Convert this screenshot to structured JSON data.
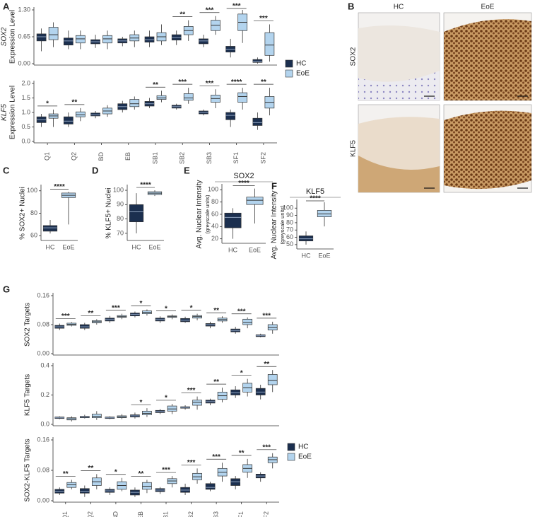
{
  "images": {
    "panel": "B",
    "columns": [
      "HC",
      "EoE"
    ],
    "rows": [
      "SOX2",
      "KLF5"
    ]
  },
  "chart_data": [
    {
      "type": "box",
      "panel": "A",
      "ylabel": [
        "SOX2",
        "Expression Level"
      ],
      "ylabel_italic": true,
      "legend": "lower right",
      "ylim": [
        0,
        1.3
      ],
      "yticks": [
        {
          "value": 0,
          "label": "0.00"
        },
        {
          "value": 0.65,
          "label": "0.65"
        },
        {
          "value": 1.3,
          "label": "1.30"
        }
      ],
      "annotations": [
        null,
        null,
        null,
        null,
        null,
        "**",
        "***",
        "***",
        "***"
      ],
      "series": [
        {
          "name": "HC",
          "color": "#1b2f4f",
          "boxes": [
            [
              0.3,
              0.55,
              0.65,
              0.72,
              0.85
            ],
            [
              0.35,
              0.45,
              0.55,
              0.62,
              0.8
            ],
            [
              0.38,
              0.48,
              0.53,
              0.58,
              0.7
            ],
            [
              0.42,
              0.5,
              0.55,
              0.6,
              0.65
            ],
            [
              0.4,
              0.52,
              0.58,
              0.65,
              0.8
            ],
            [
              0.45,
              0.57,
              0.63,
              0.7,
              0.8
            ],
            [
              0.4,
              0.48,
              0.55,
              0.6,
              0.7
            ],
            [
              0.15,
              0.28,
              0.35,
              0.42,
              0.6
            ],
            [
              0.0,
              0.03,
              0.06,
              0.1,
              0.15
            ]
          ]
        },
        {
          "name": "EoE",
          "color": "#b3d4ee",
          "boxes": [
            [
              0.4,
              0.58,
              0.7,
              0.88,
              1.0
            ],
            [
              0.35,
              0.5,
              0.6,
              0.68,
              0.8
            ],
            [
              0.35,
              0.5,
              0.6,
              0.68,
              0.8
            ],
            [
              0.4,
              0.55,
              0.62,
              0.7,
              0.8
            ],
            [
              0.45,
              0.55,
              0.65,
              0.75,
              0.95
            ],
            [
              0.55,
              0.7,
              0.8,
              0.9,
              1.05
            ],
            [
              0.7,
              0.8,
              0.93,
              1.05,
              1.15
            ],
            [
              0.5,
              0.8,
              1.0,
              1.2,
              1.3
            ],
            [
              0.05,
              0.2,
              0.45,
              0.75,
              0.95
            ]
          ]
        }
      ]
    },
    {
      "type": "box",
      "ylabel": [
        "KLF5",
        "Expression Level"
      ],
      "ylabel_italic": true,
      "categories": [
        "Q1",
        "Q2",
        "BD",
        "EB",
        "SB1",
        "SB2",
        "SB3",
        "SF1",
        "SF2"
      ],
      "ylim": [
        0,
        2
      ],
      "yticks": [
        {
          "value": 0,
          "label": "0.0"
        },
        {
          "value": 0.5,
          "label": "0.5"
        },
        {
          "value": 1,
          "label": "1.0"
        },
        {
          "value": 1.5,
          "label": "1.5"
        },
        {
          "value": 2,
          "label": "2.0"
        }
      ],
      "annotations": [
        "*",
        "**",
        null,
        null,
        "**",
        "***",
        "***",
        "****",
        "**"
      ],
      "series": [
        {
          "name": "HC",
          "color": "#1b2f4f",
          "boxes": [
            [
              0.5,
              0.65,
              0.75,
              0.85,
              0.95
            ],
            [
              0.5,
              0.6,
              0.7,
              0.85,
              1.0
            ],
            [
              0.8,
              0.88,
              0.92,
              0.98,
              1.05
            ],
            [
              1.0,
              1.1,
              1.2,
              1.3,
              1.4
            ],
            [
              1.15,
              1.22,
              1.3,
              1.38,
              1.5
            ],
            [
              1.1,
              1.15,
              1.2,
              1.25,
              1.3
            ],
            [
              0.9,
              0.95,
              1.0,
              1.05,
              1.1
            ],
            [
              0.5,
              0.75,
              0.9,
              1.0,
              1.1
            ],
            [
              0.4,
              0.55,
              0.65,
              0.8,
              1.0
            ]
          ]
        },
        {
          "name": "EoE",
          "color": "#b3d4ee",
          "boxes": [
            [
              0.5,
              0.8,
              0.88,
              0.95,
              1.1
            ],
            [
              0.7,
              0.85,
              0.92,
              1.02,
              1.15
            ],
            [
              0.85,
              0.95,
              1.05,
              1.15,
              1.25
            ],
            [
              1.1,
              1.2,
              1.3,
              1.45,
              1.55
            ],
            [
              1.35,
              1.45,
              1.5,
              1.58,
              1.75
            ],
            [
              1.3,
              1.42,
              1.5,
              1.65,
              1.85
            ],
            [
              1.15,
              1.35,
              1.48,
              1.6,
              1.8
            ],
            [
              1.1,
              1.35,
              1.55,
              1.68,
              1.85
            ],
            [
              0.9,
              1.15,
              1.35,
              1.55,
              1.85
            ]
          ]
        }
      ]
    },
    {
      "type": "pair",
      "panel": "C",
      "ylabel": [
        "% SOX2+ Nuclei"
      ],
      "categories": [
        "HC",
        "EoE"
      ],
      "ylim": [
        57,
        103
      ],
      "yticks": [
        60,
        80,
        100
      ],
      "annotations": [
        "****"
      ],
      "colors": [
        "#1b2f4f",
        "#b3d4ee"
      ],
      "boxes": [
        [
          62,
          64,
          67,
          69,
          74
        ],
        [
          70,
          94,
          96,
          98,
          99
        ]
      ]
    },
    {
      "type": "pair",
      "panel": "D",
      "ylabel": [
        "% KLF5+ Nuclei"
      ],
      "categories": [
        "HC",
        "EoE"
      ],
      "ylim": [
        66,
        102
      ],
      "yticks": [
        70,
        80,
        90,
        100
      ],
      "annotations": [
        "****"
      ],
      "colors": [
        "#1b2f4f",
        "#b3d4ee"
      ],
      "boxes": [
        [
          70,
          78,
          85,
          90,
          98
        ],
        [
          96,
          97,
          98,
          99,
          100
        ]
      ]
    },
    {
      "type": "pair",
      "panel": "E",
      "title": "SOX2",
      "ylabel": [
        "Avg. Nuclear Intensity",
        "(greyscale units)"
      ],
      "categories": [
        "HC",
        "EoE"
      ],
      "ylim": [
        15,
        105
      ],
      "yticks": [
        20,
        40,
        60,
        80,
        100
      ],
      "annotations": [
        "****"
      ],
      "colors": [
        "#1b2f4f",
        "#b3d4ee"
      ],
      "boxes": [
        [
          20,
          38,
          55,
          62,
          70
        ],
        [
          45,
          76,
          83,
          88,
          102
        ]
      ]
    },
    {
      "type": "pair",
      "panel": "F",
      "title": "KLF5",
      "ylabel": [
        "Avg. Nuclear Intensity",
        "(greyscale units)"
      ],
      "categories": [
        "HC",
        "EoE"
      ],
      "ylim": [
        46,
        108
      ],
      "yticks": [
        50,
        60,
        70,
        80,
        90,
        100
      ],
      "annotations": [
        "****"
      ],
      "colors": [
        "#1b2f4f",
        "#b3d4ee"
      ],
      "boxes": [
        [
          50,
          55,
          58,
          62,
          68
        ],
        [
          75,
          88,
          92,
          97,
          108
        ]
      ]
    },
    {
      "type": "box",
      "panel": "G",
      "ylabel": [
        "SOX2 Targets"
      ],
      "ylim": [
        0,
        0.16
      ],
      "yticks": [
        {
          "value": 0,
          "label": "0.00"
        },
        {
          "value": 0.08,
          "label": "0.08"
        },
        {
          "value": 0.16,
          "label": "0.16"
        }
      ],
      "annotations": [
        "***",
        "**",
        "***",
        "*",
        "*",
        "*",
        "**",
        "***",
        "***"
      ],
      "series": [
        {
          "name": "HC",
          "color": "#1b2f4f",
          "boxes": [
            [
              0.065,
              0.07,
              0.074,
              0.078,
              0.083
            ],
            [
              0.065,
              0.07,
              0.074,
              0.08,
              0.085
            ],
            [
              0.085,
              0.09,
              0.094,
              0.098,
              0.104
            ],
            [
              0.1,
              0.104,
              0.108,
              0.112,
              0.116
            ],
            [
              0.085,
              0.09,
              0.094,
              0.098,
              0.103
            ],
            [
              0.085,
              0.088,
              0.092,
              0.097,
              0.102
            ],
            [
              0.07,
              0.076,
              0.08,
              0.083,
              0.088
            ],
            [
              0.055,
              0.06,
              0.064,
              0.068,
              0.074
            ],
            [
              0.045,
              0.047,
              0.05,
              0.052,
              0.055
            ]
          ]
        },
        {
          "name": "EoE",
          "color": "#b3d4ee",
          "boxes": [
            [
              0.075,
              0.078,
              0.081,
              0.084,
              0.087
            ],
            [
              0.08,
              0.085,
              0.088,
              0.091,
              0.095
            ],
            [
              0.095,
              0.1,
              0.102,
              0.105,
              0.11
            ],
            [
              0.105,
              0.11,
              0.114,
              0.118,
              0.122
            ],
            [
              0.095,
              0.1,
              0.102,
              0.104,
              0.108
            ],
            [
              0.092,
              0.098,
              0.102,
              0.105,
              0.11
            ],
            [
              0.085,
              0.09,
              0.094,
              0.098,
              0.103
            ],
            [
              0.07,
              0.08,
              0.086,
              0.095,
              0.1
            ],
            [
              0.055,
              0.065,
              0.072,
              0.08,
              0.088
            ]
          ]
        }
      ]
    },
    {
      "type": "box",
      "ylabel": [
        "KLF5 Targets"
      ],
      "ylim": [
        0,
        0.4
      ],
      "yticks": [
        {
          "value": 0,
          "label": "0.0"
        },
        {
          "value": 0.2,
          "label": "0.2"
        },
        {
          "value": 0.4,
          "label": "0.4"
        }
      ],
      "annotations": [
        null,
        null,
        null,
        "*",
        "*",
        "***",
        "**",
        "*",
        "**"
      ],
      "series": [
        {
          "name": "HC",
          "color": "#1b2f4f",
          "boxes": [
            [
              0.035,
              0.04,
              0.045,
              0.05,
              0.055
            ],
            [
              0.04,
              0.045,
              0.05,
              0.055,
              0.065
            ],
            [
              0.035,
              0.04,
              0.045,
              0.05,
              0.055
            ],
            [
              0.04,
              0.05,
              0.058,
              0.065,
              0.08
            ],
            [
              0.07,
              0.08,
              0.088,
              0.095,
              0.105
            ],
            [
              0.1,
              0.11,
              0.115,
              0.12,
              0.13
            ],
            [
              0.13,
              0.145,
              0.155,
              0.165,
              0.175
            ],
            [
              0.18,
              0.2,
              0.215,
              0.235,
              0.26
            ],
            [
              0.17,
              0.2,
              0.22,
              0.245,
              0.27
            ]
          ]
        },
        {
          "name": "EoE",
          "color": "#b3d4ee",
          "boxes": [
            [
              0.02,
              0.03,
              0.038,
              0.045,
              0.055
            ],
            [
              0.03,
              0.045,
              0.055,
              0.07,
              0.09
            ],
            [
              0.035,
              0.045,
              0.05,
              0.058,
              0.07
            ],
            [
              0.05,
              0.065,
              0.075,
              0.09,
              0.11
            ],
            [
              0.07,
              0.09,
              0.105,
              0.125,
              0.14
            ],
            [
              0.1,
              0.13,
              0.15,
              0.165,
              0.19
            ],
            [
              0.15,
              0.17,
              0.195,
              0.22,
              0.25
            ],
            [
              0.19,
              0.22,
              0.25,
              0.28,
              0.31
            ],
            [
              0.22,
              0.27,
              0.3,
              0.34,
              0.37
            ]
          ]
        }
      ]
    },
    {
      "type": "box",
      "ylabel": [
        "SOX2-KLF5 Targets"
      ],
      "legend": "upper right",
      "categories": [
        "Q1",
        "Q2",
        "BD",
        "EB",
        "SB1",
        "SB2",
        "SB3",
        "SF1",
        "SF2"
      ],
      "ylim": [
        0,
        0.16
      ],
      "yticks": [
        {
          "value": 0,
          "label": "0.00"
        },
        {
          "value": 0.08,
          "label": "0.08"
        },
        {
          "value": 0.16,
          "label": "0.16"
        }
      ],
      "annotations": [
        "**",
        "**",
        "*",
        "**",
        "***",
        "***",
        "***",
        "**",
        "***"
      ],
      "series": [
        {
          "name": "HC",
          "color": "#1b2f4f",
          "boxes": [
            [
              0.015,
              0.02,
              0.025,
              0.03,
              0.035
            ],
            [
              0.01,
              0.02,
              0.025,
              0.032,
              0.04
            ],
            [
              0.015,
              0.022,
              0.026,
              0.03,
              0.035
            ],
            [
              0.01,
              0.015,
              0.022,
              0.028,
              0.035
            ],
            [
              0.018,
              0.024,
              0.028,
              0.032,
              0.036
            ],
            [
              0.015,
              0.022,
              0.028,
              0.035,
              0.045
            ],
            [
              0.025,
              0.03,
              0.035,
              0.045,
              0.05
            ],
            [
              0.03,
              0.04,
              0.05,
              0.058,
              0.065
            ],
            [
              0.05,
              0.06,
              0.065,
              0.07,
              0.075
            ]
          ]
        },
        {
          "name": "EoE",
          "color": "#b3d4ee",
          "boxes": [
            [
              0.03,
              0.035,
              0.042,
              0.048,
              0.055
            ],
            [
              0.03,
              0.04,
              0.05,
              0.06,
              0.07
            ],
            [
              0.025,
              0.03,
              0.04,
              0.05,
              0.06
            ],
            [
              0.02,
              0.03,
              0.038,
              0.048,
              0.055
            ],
            [
              0.035,
              0.045,
              0.052,
              0.058,
              0.065
            ],
            [
              0.045,
              0.055,
              0.063,
              0.072,
              0.085
            ],
            [
              0.05,
              0.065,
              0.075,
              0.085,
              0.1
            ],
            [
              0.06,
              0.075,
              0.085,
              0.095,
              0.11
            ],
            [
              0.085,
              0.1,
              0.108,
              0.115,
              0.125
            ]
          ]
        }
      ]
    }
  ]
}
